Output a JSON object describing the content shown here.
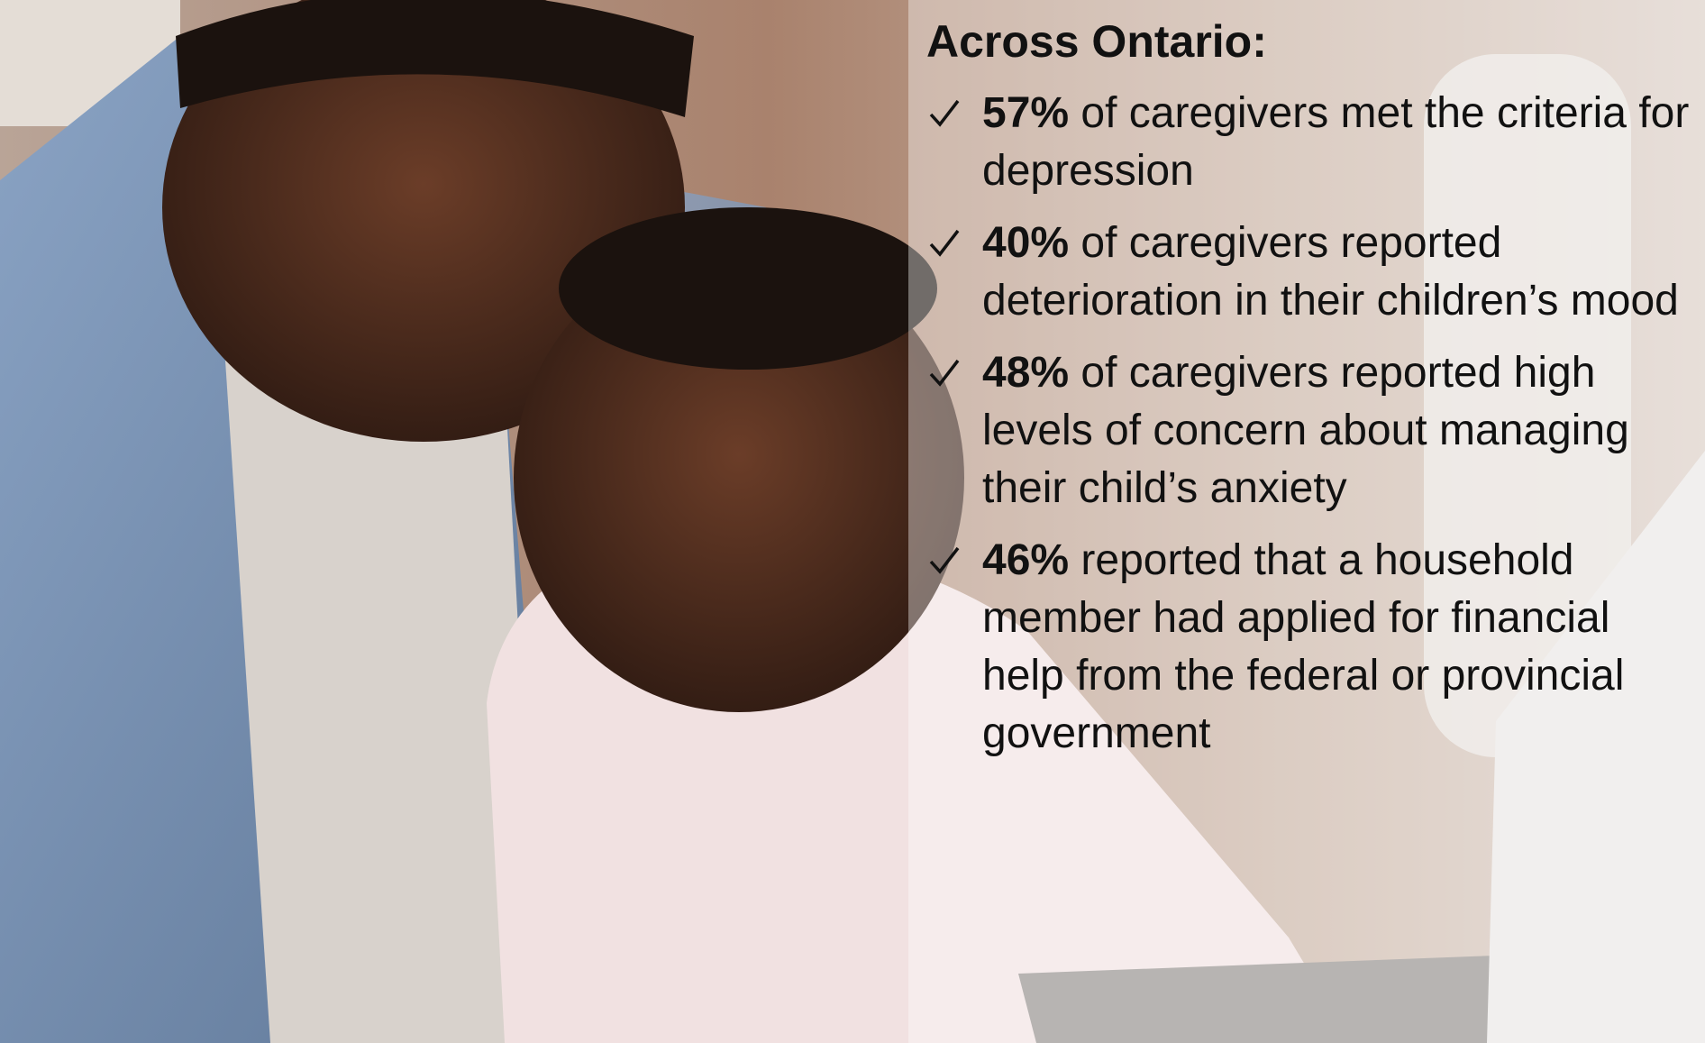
{
  "title": "Across Ontario:",
  "items": [
    {
      "highlight": "57%",
      "text": "of caregivers met the criteria for depression"
    },
    {
      "highlight": "40%",
      "text": "of caregivers reported deterioration in their children’s mood"
    },
    {
      "highlight": "48%",
      "text": "of caregivers reported high levels of concern about managing their child’s anxiety"
    },
    {
      "highlight": "46%",
      "text": "reported that a household member had applied for financial help from the federal or provincial government"
    }
  ]
}
